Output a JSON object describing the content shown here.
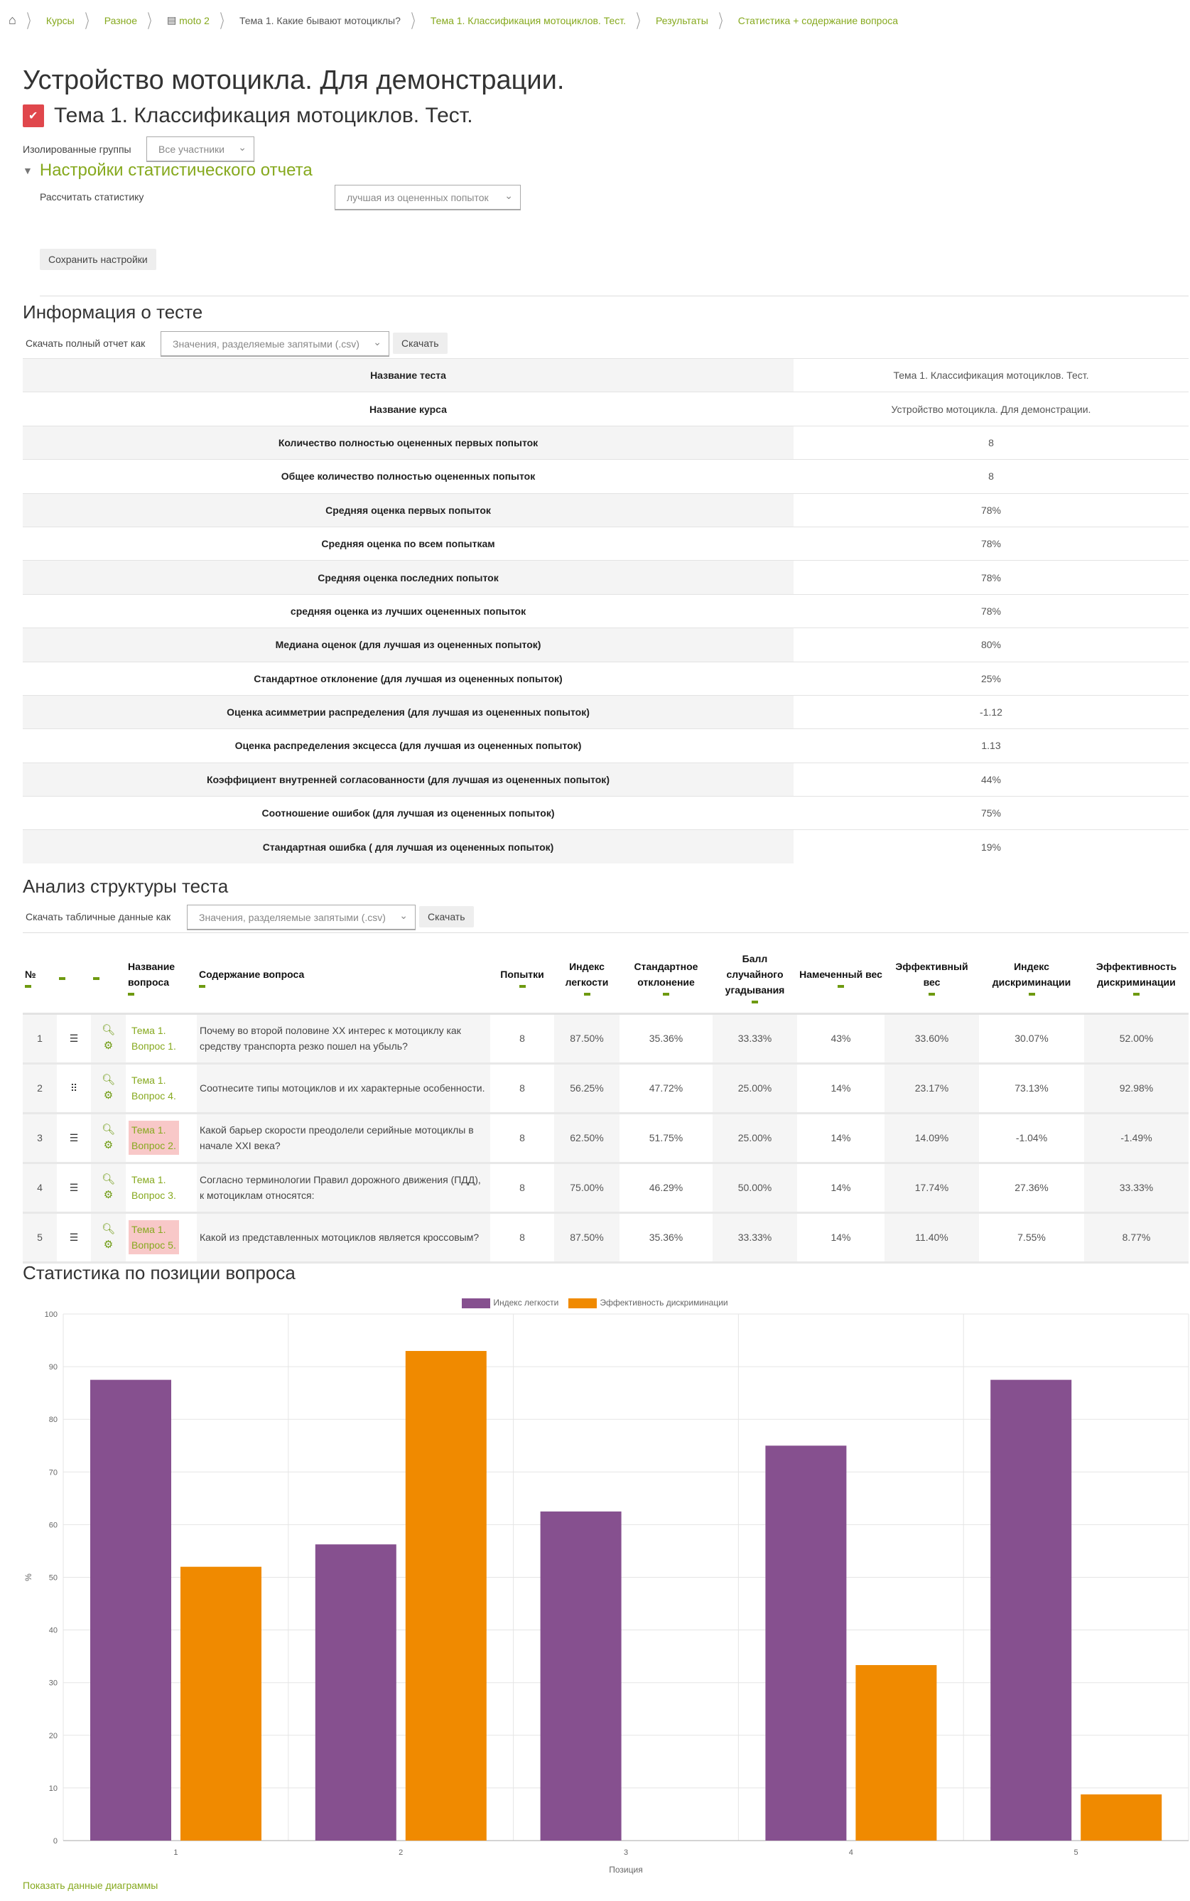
{
  "breadcrumb": [
    "Курсы",
    "Разное",
    "moto 2",
    "Тема 1. Какие бывают мотоциклы?",
    "Тема 1. Классификация мотоциклов. Тест.",
    "Результаты",
    "Статистика + содержание вопроса"
  ],
  "title": "Устройство мотоцикла. Для демонстрации.",
  "quiz_title": "Тема 1. Классификация мотоциклов. Тест.",
  "groups": {
    "label": "Изолированные группы",
    "value": "Все участники"
  },
  "settings": {
    "heading": "Настройки статистического отчета",
    "calc_label": "Рассчитать статистику",
    "calc_value": "лучшая из оцененных попыток",
    "save": "Сохранить настройки"
  },
  "info": {
    "heading": "Информация о тесте",
    "download_label": "Скачать полный отчет как",
    "format": "Значения, разделяемые запятыми (.csv)",
    "download": "Скачать",
    "rows": [
      [
        "Название теста",
        "Тема 1. Классификация мотоциклов. Тест."
      ],
      [
        "Название курса",
        "Устройство мотоцикла. Для демонстрации."
      ],
      [
        "Количество полностью оцененных первых попыток",
        "8"
      ],
      [
        "Общее количество полностью оцененных попыток",
        "8"
      ],
      [
        "Средняя оценка первых попыток",
        "78%"
      ],
      [
        "Средняя оценка по всем попыткам",
        "78%"
      ],
      [
        "Средняя оценка последних попыток",
        "78%"
      ],
      [
        "средняя оценка из лучших оцененных попыток",
        "78%"
      ],
      [
        "Медиана оценок (для лучшая из оцененных попыток)",
        "80%"
      ],
      [
        "Стандартное отклонение (для лучшая из оцененных попыток)",
        "25%"
      ],
      [
        "Оценка асимметрии распределения (для лучшая из оцененных попыток)",
        "-1.12"
      ],
      [
        "Оценка распределения эксцесса (для лучшая из оцененных попыток)",
        "1.13"
      ],
      [
        "Коэффициент внутренней согласованности (для лучшая из оцененных попыток)",
        "44%"
      ],
      [
        "Соотношение ошибок (для лучшая из оцененных попыток)",
        "75%"
      ],
      [
        "Стандартная ошибка ( для лучшая из оцененных попыток)",
        "19%"
      ]
    ]
  },
  "analysis": {
    "heading": "Анализ структуры теста",
    "download_label": "Скачать табличные данные как",
    "format": "Значения, разделяемые запятыми (.csv)",
    "download": "Скачать",
    "headers": [
      "№",
      "",
      "",
      "Название вопроса",
      "Содержание вопроса",
      "Попытки",
      "Индекс легкости",
      "Стандартное отклонение",
      "Балл случайного угадывания",
      "Намеченный вес",
      "Эффективный вес",
      "Индекс дискриминации",
      "Эффективность дискриминации"
    ],
    "rows": [
      {
        "n": "1",
        "type": "multichoice",
        "name1": "Тема 1.",
        "name2": "Вопрос 1.",
        "hl": false,
        "text": "Почему во  второй половине XX интерес к мотоциклу как средству транспорта резко пошел на убыль?",
        "vals": [
          "8",
          "87.50%",
          "35.36%",
          "33.33%",
          "43%",
          "33.60%",
          "30.07%",
          "52.00%"
        ]
      },
      {
        "n": "2",
        "type": "matching",
        "name1": "Тема 1.",
        "name2": "Вопрос 4.",
        "hl": false,
        "text": "Соотнесите типы мотоциклов и их характерные особенности.",
        "vals": [
          "8",
          "56.25%",
          "47.72%",
          "25.00%",
          "14%",
          "23.17%",
          "73.13%",
          "92.98%"
        ]
      },
      {
        "n": "3",
        "type": "multichoice",
        "name1": "Тема 1.",
        "name2": "Вопрос 2.",
        "hl": true,
        "text": "Какой барьер скорости преодолели серийные мотоциклы  в  начале XXI века?",
        "vals": [
          "8",
          "62.50%",
          "51.75%",
          "25.00%",
          "14%",
          "14.09%",
          "-1.04%",
          "-1.49%"
        ]
      },
      {
        "n": "4",
        "type": "multichoice",
        "name1": "Тема 1.",
        "name2": "Вопрос 3.",
        "hl": false,
        "text": "Согласно терминологии Правил дорожного движения (ПДД), к мотоциклам относятся:",
        "vals": [
          "8",
          "75.00%",
          "46.29%",
          "50.00%",
          "14%",
          "17.74%",
          "27.36%",
          "33.33%"
        ]
      },
      {
        "n": "5",
        "type": "multichoice",
        "name1": "Тема 1.",
        "name2": "Вопрос 5.",
        "hl": true,
        "text": "Какой из представленных мотоциклов является кроссовым?",
        "vals": [
          "8",
          "87.50%",
          "35.36%",
          "33.33%",
          "14%",
          "11.40%",
          "7.55%",
          "8.77%"
        ]
      }
    ]
  },
  "chart_heading": "Статистика по позиции вопроса",
  "chart_data": {
    "type": "bar",
    "categories": [
      "1",
      "2",
      "3",
      "4",
      "5"
    ],
    "series": [
      {
        "name": "Индекс легкости",
        "color": "#86508f",
        "values": [
          87.5,
          56.25,
          62.5,
          75,
          87.5
        ]
      },
      {
        "name": "Эффективность дискриминации",
        "color": "#f08a00",
        "values": [
          52,
          92.98,
          -1.49,
          33.33,
          8.77
        ]
      }
    ],
    "xlabel": "Позиция",
    "ylabel": "%",
    "ylim": [
      0,
      100
    ],
    "yticks": [
      "0",
      "10",
      "20",
      "30",
      "40",
      "50",
      "60",
      "70",
      "80",
      "90",
      "100"
    ],
    "grid": true,
    "legend": "top-center"
  },
  "show_chart_data": "Показать данные диаграммы"
}
